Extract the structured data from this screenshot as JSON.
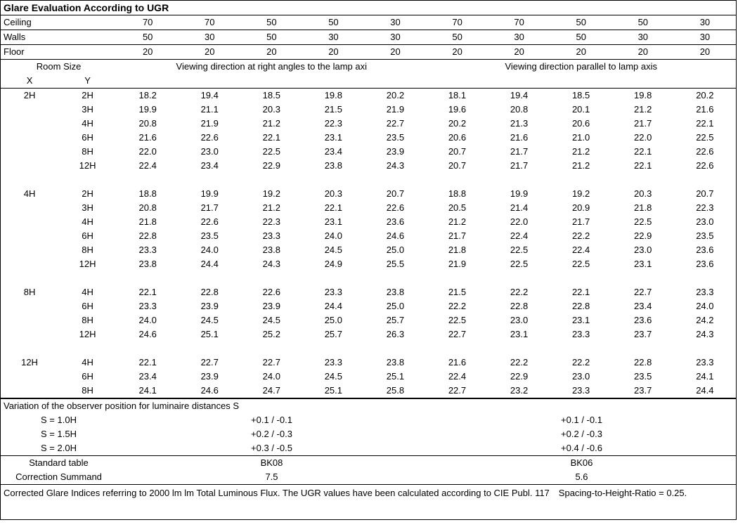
{
  "title": "Glare Evaluation According to UGR",
  "header_labels": {
    "ceiling": "Ceiling",
    "walls": "Walls",
    "floor": "Floor"
  },
  "ceiling": [
    "70",
    "70",
    "50",
    "50",
    "30",
    "70",
    "70",
    "50",
    "50",
    "30"
  ],
  "walls": [
    "50",
    "30",
    "50",
    "30",
    "30",
    "50",
    "30",
    "50",
    "30",
    "30"
  ],
  "floor": [
    "20",
    "20",
    "20",
    "20",
    "20",
    "20",
    "20",
    "20",
    "20",
    "20"
  ],
  "room_size_label": "Room Size",
  "x_label": "X",
  "y_label": "Y",
  "left_group": "Viewing direction at right angles to the lamp axi",
  "right_group": "Viewing direction parallel to lamp axis",
  "blocks": [
    {
      "x": "2H",
      "rows": [
        {
          "y": "2H",
          "v": [
            "18.2",
            "19.4",
            "18.5",
            "19.8",
            "20.2",
            "18.1",
            "19.4",
            "18.5",
            "19.8",
            "20.2"
          ]
        },
        {
          "y": "3H",
          "v": [
            "19.9",
            "21.1",
            "20.3",
            "21.5",
            "21.9",
            "19.6",
            "20.8",
            "20.1",
            "21.2",
            "21.6"
          ]
        },
        {
          "y": "4H",
          "v": [
            "20.8",
            "21.9",
            "21.2",
            "22.3",
            "22.7",
            "20.2",
            "21.3",
            "20.6",
            "21.7",
            "22.1"
          ]
        },
        {
          "y": "6H",
          "v": [
            "21.6",
            "22.6",
            "22.1",
            "23.1",
            "23.5",
            "20.6",
            "21.6",
            "21.0",
            "22.0",
            "22.5"
          ]
        },
        {
          "y": "8H",
          "v": [
            "22.0",
            "23.0",
            "22.5",
            "23.4",
            "23.9",
            "20.7",
            "21.7",
            "21.2",
            "22.1",
            "22.6"
          ]
        },
        {
          "y": "12H",
          "v": [
            "22.4",
            "23.4",
            "22.9",
            "23.8",
            "24.3",
            "20.7",
            "21.7",
            "21.2",
            "22.1",
            "22.6"
          ]
        }
      ]
    },
    {
      "x": "4H",
      "rows": [
        {
          "y": "2H",
          "v": [
            "18.8",
            "19.9",
            "19.2",
            "20.3",
            "20.7",
            "18.8",
            "19.9",
            "19.2",
            "20.3",
            "20.7"
          ]
        },
        {
          "y": "3H",
          "v": [
            "20.8",
            "21.7",
            "21.2",
            "22.1",
            "22.6",
            "20.5",
            "21.4",
            "20.9",
            "21.8",
            "22.3"
          ]
        },
        {
          "y": "4H",
          "v": [
            "21.8",
            "22.6",
            "22.3",
            "23.1",
            "23.6",
            "21.2",
            "22.0",
            "21.7",
            "22.5",
            "23.0"
          ]
        },
        {
          "y": "6H",
          "v": [
            "22.8",
            "23.5",
            "23.3",
            "24.0",
            "24.6",
            "21.7",
            "22.4",
            "22.2",
            "22.9",
            "23.5"
          ]
        },
        {
          "y": "8H",
          "v": [
            "23.3",
            "24.0",
            "23.8",
            "24.5",
            "25.0",
            "21.8",
            "22.5",
            "22.4",
            "23.0",
            "23.6"
          ]
        },
        {
          "y": "12H",
          "v": [
            "23.8",
            "24.4",
            "24.3",
            "24.9",
            "25.5",
            "21.9",
            "22.5",
            "22.5",
            "23.1",
            "23.6"
          ]
        }
      ]
    },
    {
      "x": "8H",
      "rows": [
        {
          "y": "4H",
          "v": [
            "22.1",
            "22.8",
            "22.6",
            "23.3",
            "23.8",
            "21.5",
            "22.2",
            "22.1",
            "22.7",
            "23.3"
          ]
        },
        {
          "y": "6H",
          "v": [
            "23.3",
            "23.9",
            "23.9",
            "24.4",
            "25.0",
            "22.2",
            "22.8",
            "22.8",
            "23.4",
            "24.0"
          ]
        },
        {
          "y": "8H",
          "v": [
            "24.0",
            "24.5",
            "24.5",
            "25.0",
            "25.7",
            "22.5",
            "23.0",
            "23.1",
            "23.6",
            "24.2"
          ]
        },
        {
          "y": "12H",
          "v": [
            "24.6",
            "25.1",
            "25.2",
            "25.7",
            "26.3",
            "22.7",
            "23.1",
            "23.3",
            "23.7",
            "24.3"
          ]
        }
      ]
    },
    {
      "x": "12H",
      "rows": [
        {
          "y": "4H",
          "v": [
            "22.1",
            "22.7",
            "22.7",
            "23.3",
            "23.8",
            "21.6",
            "22.2",
            "22.2",
            "22.8",
            "23.3"
          ]
        },
        {
          "y": "6H",
          "v": [
            "23.4",
            "23.9",
            "24.0",
            "24.5",
            "25.1",
            "22.4",
            "22.9",
            "23.0",
            "23.5",
            "24.1"
          ]
        },
        {
          "y": "8H",
          "v": [
            "24.1",
            "24.6",
            "24.7",
            "25.1",
            "25.8",
            "22.7",
            "23.2",
            "23.3",
            "23.7",
            "24.4"
          ]
        }
      ]
    }
  ],
  "variation_label": "Variation of the observer position for luminaire distances S",
  "variation": [
    {
      "s": "S = 1.0H",
      "l": "+0.1 / -0.1",
      "r": "+0.1 / -0.1"
    },
    {
      "s": "S = 1.5H",
      "l": "+0.2 / -0.3",
      "r": "+0.2 / -0.3"
    },
    {
      "s": "S = 2.0H",
      "l": "+0.3 / -0.5",
      "r": "+0.4 / -0.6"
    }
  ],
  "std_table_label": "Standard table",
  "std_table": {
    "l": "BK08",
    "r": "BK06"
  },
  "corr_label": "Correction Summand",
  "corr": {
    "l": "7.5",
    "r": "5.6"
  },
  "footnote": "Corrected Glare Indices referring to 2000 lm lm Total Luminous Flux. The UGR values have been calculated according to CIE Publ. 117 Spacing-to-Height-Ratio = 0.25."
}
